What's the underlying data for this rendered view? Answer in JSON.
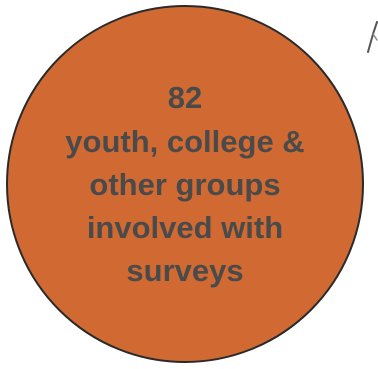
{
  "stat": {
    "number": "82",
    "lines": [
      "youth, college &",
      "other groups",
      "involved with",
      "surveys"
    ]
  },
  "colors": {
    "circle_fill": "#D06A32",
    "circle_border": "#2a2a2a",
    "text": "#4a4a4a"
  },
  "icons": {
    "corner": "stroke-fragment-icon"
  }
}
